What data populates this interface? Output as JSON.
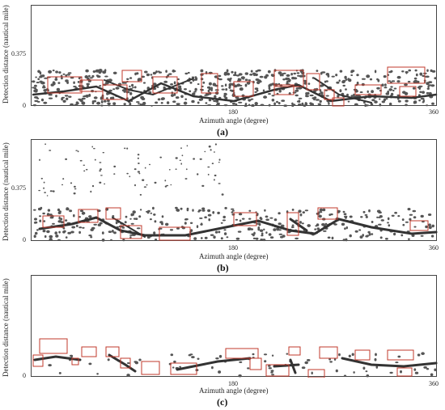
{
  "panels": [
    {
      "caption": "(a)",
      "ylabel": "Detection distance (nautical mile)",
      "xlabel": "Azimuth angle (degree)",
      "y_ticks": [
        "0",
        "0.375"
      ],
      "x_ticks": [
        "180",
        "360"
      ]
    },
    {
      "caption": "(b)",
      "ylabel": "Detection distance (nautical mile)",
      "xlabel": "Azimuth angle (degree)",
      "y_ticks": [
        "0",
        "0.375"
      ],
      "x_ticks": [
        "180",
        "360"
      ]
    },
    {
      "caption": "(c)",
      "ylabel": "Detection distance (nautical mile)",
      "xlabel": "Azimuth angle (degree)",
      "y_ticks": [
        "0"
      ],
      "x_ticks": [
        "180",
        "360"
      ]
    }
  ],
  "colors": {
    "clutter": "#555555",
    "box": "#c0392b",
    "axis": "#444444"
  }
}
